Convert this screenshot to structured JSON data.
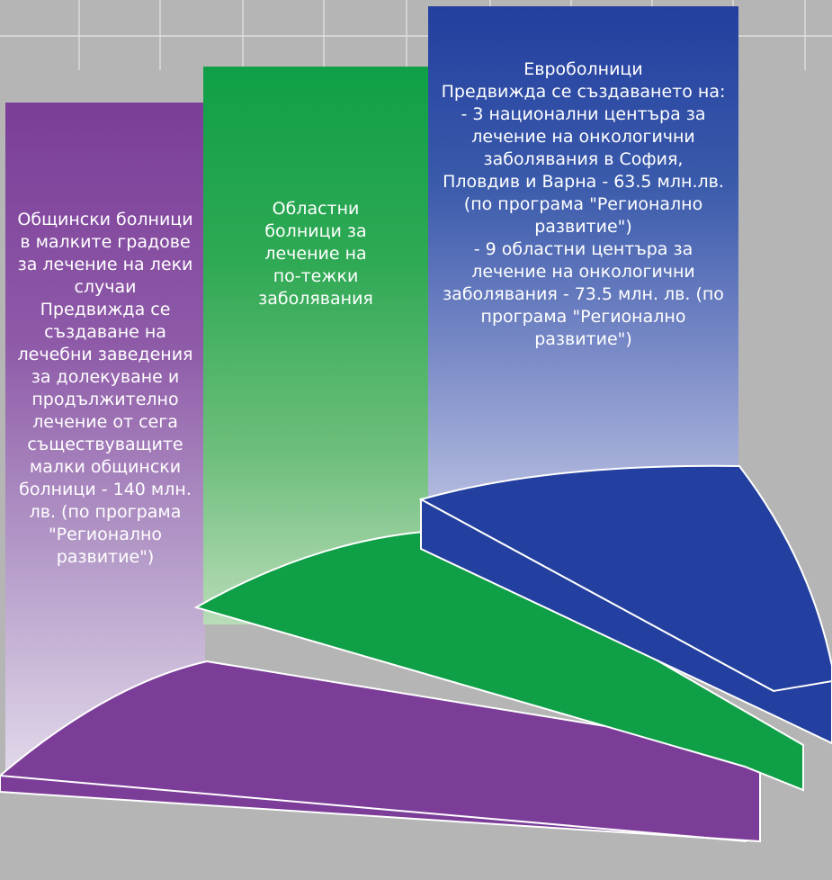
{
  "columns": [
    {
      "id": "municipal",
      "color": "#7b3d98",
      "lines": [
        "Общински болници",
        "в малките градове",
        "за лечение на леки",
        "случаи",
        "Предвижда се",
        "създаване на",
        "лечебни заведения",
        "за долекуване и",
        "продължително",
        "лечение от сега",
        "съществуващите",
        "малки общински",
        "болници - 140 млн.",
        "лв. (по програма",
        "\"Регионално",
        "развитие\")"
      ]
    },
    {
      "id": "regional",
      "color": "#0f9f47",
      "lines": [
        "Областни",
        "болници за",
        "лечение на",
        "по-тежки",
        "заболявания"
      ]
    },
    {
      "id": "euro",
      "color": "#233f9f",
      "lines": [
        "Евроболници",
        "Предвижда се създаването на:",
        "- 3 национални центъра за",
        "лечение на онкологични",
        "заболявания в София,",
        "Пловдив и Варна - 63.5 млн.лв.",
        "(по програма \"Регионално",
        "развитие\")",
        "- 9 областни центъра за",
        "лечение на онкологични",
        "заболявания - 73.5 млн. лв. (по",
        "програма \"Регионално",
        "развитие\")"
      ]
    }
  ],
  "colors": {
    "background": "#b5b5b5",
    "grid_line": "#e6e6e6",
    "step_purple": "#7b3d98",
    "step_green": "#0f9f47",
    "step_blue": "#233f9f",
    "step_edge": "#ffffff"
  }
}
